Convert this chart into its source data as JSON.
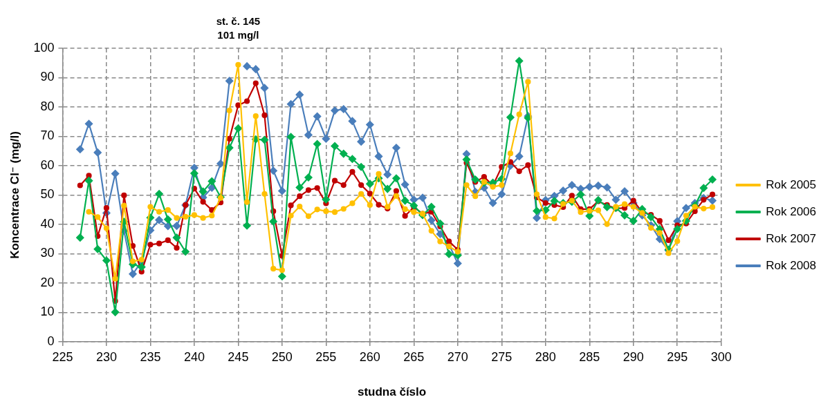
{
  "chart_data": {
    "type": "line",
    "xlabel": "studna číslo",
    "ylabel": "Koncentrace Cl⁻ (mg/l)",
    "annotations": [
      "st. č. 145\n101 mg/l"
    ],
    "x": [
      227,
      228,
      229,
      230,
      231,
      232,
      233,
      234,
      235,
      236,
      237,
      238,
      239,
      240,
      241,
      242,
      243,
      244,
      245,
      246,
      247,
      248,
      249,
      250,
      251,
      252,
      253,
      254,
      255,
      256,
      257,
      258,
      259,
      260,
      261,
      262,
      263,
      264,
      265,
      266,
      267,
      268,
      269,
      270,
      271,
      272,
      273,
      274,
      275,
      276,
      277,
      278,
      279,
      280,
      281,
      282,
      283,
      284,
      285,
      286,
      287,
      288,
      289,
      290,
      291,
      292,
      293,
      294,
      295,
      296,
      297,
      298,
      299
    ],
    "xlim": [
      225,
      300
    ],
    "xticks": [
      225,
      230,
      235,
      240,
      245,
      250,
      255,
      260,
      265,
      270,
      275,
      280,
      285,
      290,
      295,
      300
    ],
    "ylim": [
      0,
      100
    ],
    "yticks": [
      0,
      10,
      20,
      30,
      40,
      50,
      60,
      70,
      80,
      90,
      100
    ],
    "grid": true,
    "legend": "right",
    "line_style": "solid",
    "series": [
      {
        "name": "Rok 2005",
        "color": "#ffc000",
        "marker": "circle",
        "values": [
          null,
          44.3,
          42.5,
          38.7,
          21.5,
          46.4,
          27.4,
          28,
          46,
          44.3,
          44.9,
          42.2,
          42.6,
          43.2,
          42.2,
          43,
          49,
          78.8,
          94.4,
          47.6,
          76.9,
          50.4,
          24.9,
          24.4,
          43,
          46.1,
          42.8,
          45.1,
          44.5,
          44.2,
          45.3,
          47.2,
          50.4,
          46.6,
          57.2,
          46,
          49.7,
          45.2,
          44.2,
          43.6,
          37.8,
          34.2,
          32.5,
          30.7,
          53.4,
          49.6,
          54.5,
          52.8,
          53.4,
          64.2,
          77.5,
          88.6,
          50.3,
          42.5,
          42,
          47,
          48.1,
          44.2,
          44.6,
          44.8,
          40.1,
          46,
          46.9,
          46,
          43.9,
          38.8,
          37.1,
          30.2,
          34.3,
          43,
          46,
          45.4,
          45.9
        ]
      },
      {
        "name": "Rok 2006",
        "color": "#00b050",
        "marker": "diamond",
        "values": [
          35.5,
          54.9,
          31.6,
          27.7,
          10.1,
          40.9,
          26.4,
          25.5,
          42.3,
          50.4,
          41.7,
          35.5,
          30.7,
          57.4,
          51.2,
          54.7,
          49.3,
          66.1,
          72.7,
          39.6,
          69,
          68.8,
          41,
          22.3,
          69.8,
          52.6,
          56,
          67.4,
          48.5,
          66.7,
          64.1,
          62.3,
          59.6,
          53.8,
          55.7,
          52.1,
          55.7,
          48.1,
          46.4,
          43.2,
          46,
          40.3,
          29.9,
          29.5,
          62.1,
          55.3,
          54.2,
          54.2,
          55.5,
          76.5,
          95.7,
          76.3,
          44.6,
          44.9,
          48,
          47.3,
          47.7,
          50.2,
          42.9,
          48.3,
          45.9,
          45.6,
          43.1,
          41.2,
          45.2,
          42.5,
          38.4,
          31.4,
          38.4,
          41.2,
          46.4,
          52.4,
          55.3
        ]
      },
      {
        "name": "Rok 2007",
        "color": "#c00000",
        "marker": "circle",
        "values": [
          53.3,
          56.6,
          36,
          45.6,
          13.9,
          49.9,
          32.7,
          23.9,
          33.1,
          33.5,
          34.6,
          32,
          46.6,
          52.2,
          47.7,
          44.9,
          47.5,
          69.2,
          80.6,
          82,
          88.1,
          77.2,
          44.5,
          29.3,
          46.5,
          49.6,
          51.7,
          52.4,
          47.2,
          54.9,
          53.4,
          57.9,
          53.4,
          50.5,
          46.7,
          45.4,
          51.4,
          42.9,
          45.9,
          43.6,
          44.3,
          39.3,
          34.2,
          31.4,
          61,
          54.5,
          56.2,
          53.2,
          59.6,
          61.3,
          58.1,
          60.2,
          49.2,
          47.3,
          46.6,
          45.9,
          49.8,
          45.2,
          45.2,
          47.9,
          46.6,
          45.4,
          45.6,
          48.1,
          44.2,
          43.3,
          41.2,
          34.6,
          39.7,
          40.3,
          44.5,
          48.4,
          50.2
        ]
      },
      {
        "name": "Rok 2008",
        "color": "#4a7ebb",
        "marker": "diamond",
        "values": [
          65.6,
          74.3,
          64.5,
          43.9,
          57.3,
          37.8,
          23.1,
          27.4,
          38,
          41.5,
          39.4,
          39.5,
          46.6,
          59.3,
          49.2,
          52.5,
          60.7,
          88.9,
          null,
          93.9,
          92.9,
          86.5,
          58.3,
          51.4,
          81,
          84.2,
          70.5,
          76.8,
          69.2,
          78.8,
          79.3,
          75.2,
          68.2,
          74,
          63.2,
          57,
          66.1,
          53.6,
          48.4,
          49.1,
          41.4,
          36.7,
          33.2,
          26.7,
          64,
          51.1,
          52.5,
          47.3,
          50.3,
          60,
          63.2,
          76.9,
          42.2,
          48.3,
          49.7,
          51.5,
          53.4,
          52.1,
          52.8,
          53.2,
          52.6,
          48.4,
          51.3,
          47.3,
          43.1,
          39.7,
          35,
          31.2,
          41.1,
          45.6,
          47.3,
          49,
          48.1
        ]
      }
    ]
  }
}
